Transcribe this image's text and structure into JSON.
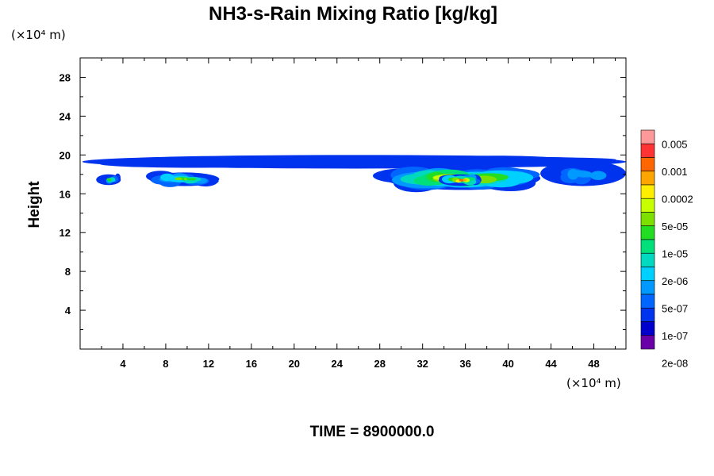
{
  "chart_data": {
    "type": "heatmap",
    "title": "NH3-s-Rain Mixing Ratio [kg/kg]",
    "xlabel": "",
    "ylabel": "Height",
    "x_unit": "(×10⁴ m)",
    "y_unit": "(×10⁴ m)",
    "xlim": [
      0,
      51
    ],
    "ylim": [
      0,
      30
    ],
    "x_ticks": [
      "4",
      "8",
      "12",
      "16",
      "20",
      "24",
      "28",
      "32",
      "36",
      "40",
      "44",
      "48"
    ],
    "y_ticks": [
      "4",
      "8",
      "12",
      "16",
      "20",
      "24",
      "28"
    ],
    "colorbar": {
      "labels": [
        "0.005",
        "0.001",
        "0.0002",
        "5e-05",
        "1e-05",
        "2e-06",
        "5e-07",
        "1e-07",
        "2e-08"
      ],
      "colors_top_to_bottom": [
        "#ff9999",
        "#ff3333",
        "#ff6600",
        "#ffa500",
        "#ffee00",
        "#c8ff00",
        "#7ee000",
        "#22dd22",
        "#00e07a",
        "#00d8c0",
        "#00d0ff",
        "#0099ff",
        "#0066ff",
        "#0033ee",
        "#0000cc",
        "#6a00a8"
      ]
    },
    "regions": [
      {
        "x": [
          0.2,
          51
        ],
        "y": [
          18.6,
          20.0
        ],
        "level": 0.15,
        "note": "thin band near top of cloud layer"
      },
      {
        "x": [
          1.5,
          3.8
        ],
        "y": [
          16.9,
          18.0
        ],
        "level": 0.55
      },
      {
        "x": [
          6.5,
          13.0
        ],
        "y": [
          16.8,
          18.2
        ],
        "level": 0.6
      },
      {
        "x": [
          28.5,
          43.0
        ],
        "y": [
          16.4,
          18.8
        ],
        "level": 0.75
      },
      {
        "x": [
          33.5,
          37.5
        ],
        "y": [
          16.8,
          18.0
        ],
        "level": 0.85
      },
      {
        "x": [
          43.0,
          51.0
        ],
        "y": [
          16.8,
          19.4
        ],
        "level": 0.3
      }
    ]
  },
  "footer": {
    "time_label": "TIME = 8900000.0"
  }
}
